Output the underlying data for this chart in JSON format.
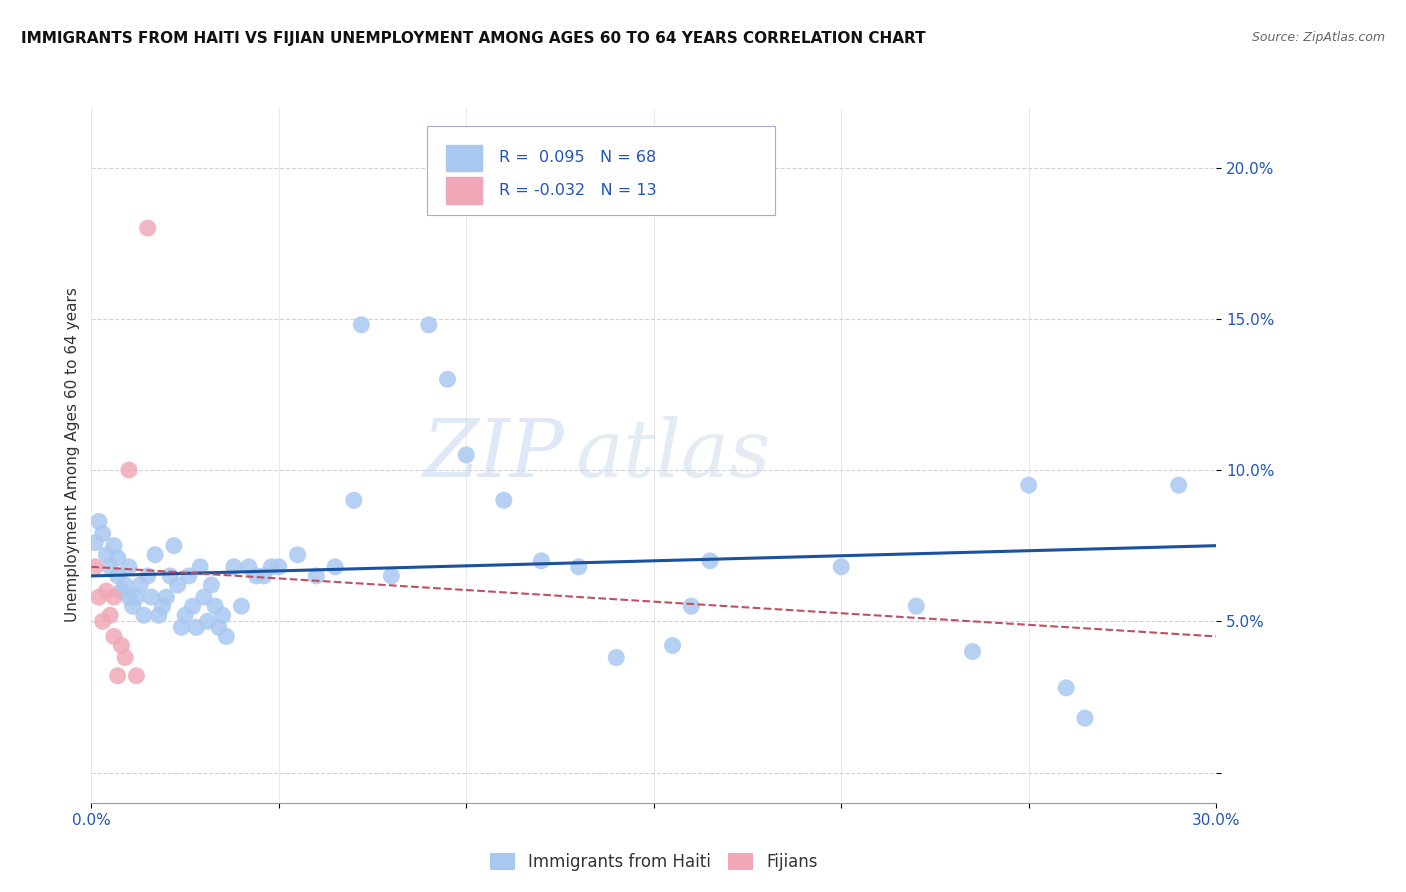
{
  "title": "IMMIGRANTS FROM HAITI VS FIJIAN UNEMPLOYMENT AMONG AGES 60 TO 64 YEARS CORRELATION CHART",
  "source": "Source: ZipAtlas.com",
  "ylabel": "Unemployment Among Ages 60 to 64 years",
  "xlim": [
    0.0,
    0.3
  ],
  "ylim": [
    -0.01,
    0.22
  ],
  "ytick_positions": [
    0.0,
    0.05,
    0.1,
    0.15,
    0.2
  ],
  "ytick_labels": [
    "",
    "5.0%",
    "10.0%",
    "15.0%",
    "20.0%"
  ],
  "xtick_positions": [
    0.0,
    0.05,
    0.1,
    0.15,
    0.2,
    0.25,
    0.3
  ],
  "xtick_labels": [
    "0.0%",
    "",
    "",
    "",
    "",
    "",
    "30.0%"
  ],
  "legend_label1": "Immigrants from Haiti",
  "legend_label2": "Fijians",
  "watermark_part1": "ZIP",
  "watermark_part2": "atlas",
  "haiti_color": "#a8c8f0",
  "fijian_color": "#f0a8b8",
  "haiti_line_color": "#1a52a0",
  "fijian_line_color": "#c05060",
  "haiti_R": 0.095,
  "haiti_N": 68,
  "fijian_R": -0.032,
  "fijian_N": 13,
  "haiti_line_x0": 0.0,
  "haiti_line_y0": 0.065,
  "haiti_line_x1": 0.3,
  "haiti_line_y1": 0.075,
  "fijian_line_x0": 0.0,
  "fijian_line_y0": 0.068,
  "fijian_line_x1": 0.3,
  "fijian_line_y1": 0.045,
  "haiti_scatter": [
    [
      0.001,
      0.076
    ],
    [
      0.002,
      0.083
    ],
    [
      0.003,
      0.079
    ],
    [
      0.004,
      0.072
    ],
    [
      0.005,
      0.068
    ],
    [
      0.006,
      0.075
    ],
    [
      0.007,
      0.065
    ],
    [
      0.007,
      0.071
    ],
    [
      0.008,
      0.06
    ],
    [
      0.009,
      0.062
    ],
    [
      0.01,
      0.058
    ],
    [
      0.01,
      0.068
    ],
    [
      0.011,
      0.055
    ],
    [
      0.012,
      0.058
    ],
    [
      0.013,
      0.062
    ],
    [
      0.014,
      0.052
    ],
    [
      0.015,
      0.065
    ],
    [
      0.016,
      0.058
    ],
    [
      0.017,
      0.072
    ],
    [
      0.018,
      0.052
    ],
    [
      0.019,
      0.055
    ],
    [
      0.02,
      0.058
    ],
    [
      0.021,
      0.065
    ],
    [
      0.022,
      0.075
    ],
    [
      0.023,
      0.062
    ],
    [
      0.024,
      0.048
    ],
    [
      0.025,
      0.052
    ],
    [
      0.026,
      0.065
    ],
    [
      0.027,
      0.055
    ],
    [
      0.028,
      0.048
    ],
    [
      0.029,
      0.068
    ],
    [
      0.03,
      0.058
    ],
    [
      0.031,
      0.05
    ],
    [
      0.032,
      0.062
    ],
    [
      0.033,
      0.055
    ],
    [
      0.034,
      0.048
    ],
    [
      0.035,
      0.052
    ],
    [
      0.036,
      0.045
    ],
    [
      0.038,
      0.068
    ],
    [
      0.04,
      0.055
    ],
    [
      0.042,
      0.068
    ],
    [
      0.044,
      0.065
    ],
    [
      0.046,
      0.065
    ],
    [
      0.048,
      0.068
    ],
    [
      0.05,
      0.068
    ],
    [
      0.055,
      0.072
    ],
    [
      0.06,
      0.065
    ],
    [
      0.065,
      0.068
    ],
    [
      0.07,
      0.09
    ],
    [
      0.072,
      0.148
    ],
    [
      0.08,
      0.065
    ],
    [
      0.09,
      0.148
    ],
    [
      0.095,
      0.13
    ],
    [
      0.1,
      0.105
    ],
    [
      0.11,
      0.09
    ],
    [
      0.12,
      0.07
    ],
    [
      0.13,
      0.068
    ],
    [
      0.14,
      0.038
    ],
    [
      0.155,
      0.042
    ],
    [
      0.16,
      0.055
    ],
    [
      0.165,
      0.07
    ],
    [
      0.2,
      0.068
    ],
    [
      0.22,
      0.055
    ],
    [
      0.235,
      0.04
    ],
    [
      0.25,
      0.095
    ],
    [
      0.26,
      0.028
    ],
    [
      0.265,
      0.018
    ],
    [
      0.29,
      0.095
    ]
  ],
  "fijian_scatter": [
    [
      0.001,
      0.068
    ],
    [
      0.002,
      0.058
    ],
    [
      0.003,
      0.05
    ],
    [
      0.004,
      0.06
    ],
    [
      0.005,
      0.052
    ],
    [
      0.006,
      0.058
    ],
    [
      0.006,
      0.045
    ],
    [
      0.007,
      0.032
    ],
    [
      0.008,
      0.042
    ],
    [
      0.009,
      0.038
    ],
    [
      0.01,
      0.1
    ],
    [
      0.012,
      0.032
    ],
    [
      0.015,
      0.18
    ]
  ],
  "title_fontsize": 11,
  "source_fontsize": 9,
  "tick_fontsize": 11,
  "ylabel_fontsize": 11
}
